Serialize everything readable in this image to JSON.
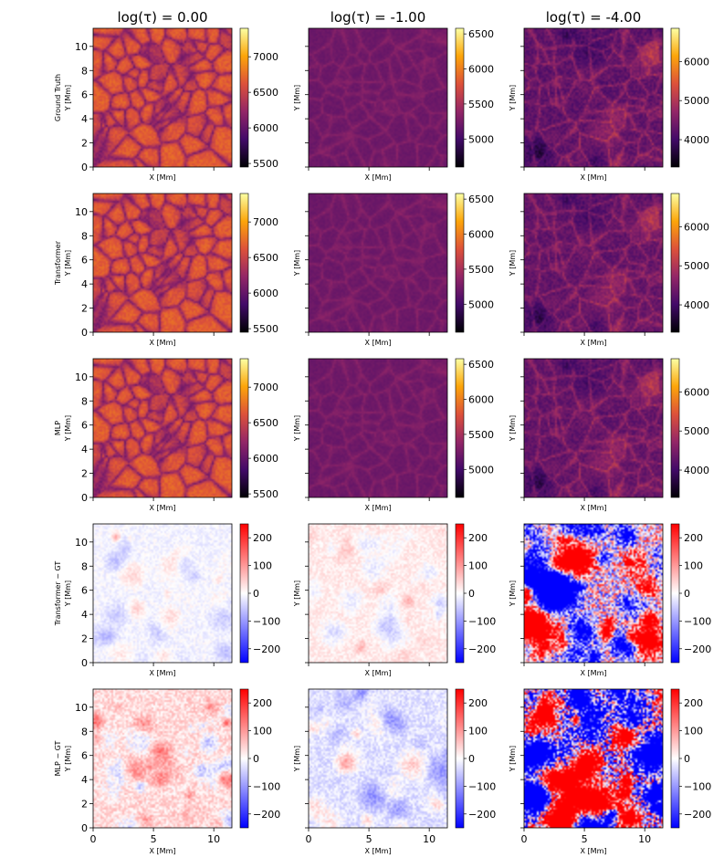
{
  "figure": {
    "column_titles": [
      "log(τ) = 0.00",
      "log(τ) = -1.00",
      "log(τ) = -4.00"
    ],
    "row_labels": [
      [
        "Ground Truth",
        "Y [Mm]"
      ],
      [
        "Transformer",
        "Y [Mm]"
      ],
      [
        "MLP",
        "Y [Mm]"
      ],
      [
        "Transformer − GT",
        "Y [Mm]"
      ],
      [
        "MLP − GT",
        "Y [Mm]"
      ]
    ],
    "inner_ylabel": "Y [Mm]",
    "xlabel": "X [Mm]"
  },
  "chart_data": {
    "type": "heatmap",
    "grid_rows": 5,
    "grid_cols": 3,
    "x_axis": {
      "label": "X [Mm]",
      "range": [
        0,
        11.5
      ],
      "ticks": [
        0,
        5,
        10
      ]
    },
    "y_axis": {
      "label": "Y [Mm]",
      "range": [
        0,
        11.5
      ],
      "ticks": [
        0,
        2,
        4,
        6,
        8,
        10
      ]
    },
    "colorbars": {
      "temp_col0": {
        "colormap": "inferno",
        "range": [
          5450,
          7400
        ],
        "ticks": [
          5500,
          6000,
          6500,
          7000
        ],
        "colors": [
          "#000004",
          "#420a68",
          "#932667",
          "#dd513a",
          "#fca50a",
          "#fcffa4"
        ]
      },
      "temp_col1": {
        "colormap": "inferno",
        "range": [
          4600,
          6580
        ],
        "ticks": [
          5000,
          5500,
          6000,
          6500
        ],
        "colors": [
          "#000004",
          "#420a68",
          "#932667",
          "#dd513a",
          "#fca50a",
          "#fcffa4"
        ]
      },
      "temp_col2": {
        "colormap": "inferno",
        "range": [
          3300,
          6850
        ],
        "ticks": [
          4000,
          5000,
          6000
        ],
        "colors": [
          "#000004",
          "#420a68",
          "#932667",
          "#dd513a",
          "#fca50a",
          "#fcffa4"
        ]
      },
      "diff": {
        "colormap": "bwr",
        "range": [
          -250,
          250
        ],
        "ticks": [
          200,
          100,
          0,
          -100,
          -200
        ],
        "tick_labels": [
          "200",
          "100",
          "0",
          "−100",
          "−200"
        ],
        "colors": [
          "#0000ff",
          "#ffffff",
          "#ff0000"
        ]
      }
    },
    "panels": [
      {
        "row": 0,
        "col": 0,
        "label": "Ground Truth",
        "tau": "0.00",
        "cbar": "temp_col0",
        "mean": 6290,
        "amp": 520,
        "style": "granule",
        "seed": 11
      },
      {
        "row": 0,
        "col": 1,
        "label": "Ground Truth",
        "tau": "-1.00",
        "cbar": "temp_col1",
        "mean": 5250,
        "amp": 260,
        "style": "dim",
        "seed": 12
      },
      {
        "row": 0,
        "col": 2,
        "label": "Ground Truth",
        "tau": "-4.00",
        "cbar": "temp_col2",
        "mean": 4700,
        "amp": 650,
        "style": "patchy",
        "seed": 13
      },
      {
        "row": 1,
        "col": 0,
        "label": "Transformer",
        "tau": "0.00",
        "cbar": "temp_col0",
        "mean": 6290,
        "amp": 520,
        "style": "granule",
        "seed": 11
      },
      {
        "row": 1,
        "col": 1,
        "label": "Transformer",
        "tau": "-1.00",
        "cbar": "temp_col1",
        "mean": 5250,
        "amp": 250,
        "style": "dim",
        "seed": 12
      },
      {
        "row": 1,
        "col": 2,
        "label": "Transformer",
        "tau": "-4.00",
        "cbar": "temp_col2",
        "mean": 4700,
        "amp": 600,
        "style": "patchy",
        "seed": 13
      },
      {
        "row": 2,
        "col": 0,
        "label": "MLP",
        "tau": "0.00",
        "cbar": "temp_col0",
        "mean": 6290,
        "amp": 520,
        "style": "granule",
        "seed": 11
      },
      {
        "row": 2,
        "col": 1,
        "label": "MLP",
        "tau": "-1.00",
        "cbar": "temp_col1",
        "mean": 5250,
        "amp": 250,
        "style": "dim",
        "seed": 12
      },
      {
        "row": 2,
        "col": 2,
        "label": "MLP",
        "tau": "-4.00",
        "cbar": "temp_col2",
        "mean": 4700,
        "amp": 600,
        "style": "patchy",
        "seed": 13
      },
      {
        "row": 3,
        "col": 0,
        "label": "Transformer − GT",
        "tau": "0.00",
        "cbar": "diff",
        "mean": -10,
        "amp": 45,
        "style": "noise",
        "seed": 31
      },
      {
        "row": 3,
        "col": 1,
        "label": "Transformer − GT",
        "tau": "-1.00",
        "cbar": "diff",
        "mean": 20,
        "amp": 50,
        "style": "noise",
        "seed": 32
      },
      {
        "row": 3,
        "col": 2,
        "label": "Transformer − GT",
        "tau": "-4.00",
        "cbar": "diff",
        "mean": 0,
        "amp": 260,
        "style": "saturated",
        "seed": 33
      },
      {
        "row": 4,
        "col": 0,
        "label": "MLP − GT",
        "tau": "0.00",
        "cbar": "diff",
        "mean": 35,
        "amp": 90,
        "style": "noise",
        "seed": 41
      },
      {
        "row": 4,
        "col": 1,
        "label": "MLP − GT",
        "tau": "-1.00",
        "cbar": "diff",
        "mean": -30,
        "amp": 70,
        "style": "noise",
        "seed": 42
      },
      {
        "row": 4,
        "col": 2,
        "label": "MLP − GT",
        "tau": "-4.00",
        "cbar": "diff",
        "mean": -20,
        "amp": 420,
        "style": "saturated",
        "seed": 43
      }
    ]
  }
}
